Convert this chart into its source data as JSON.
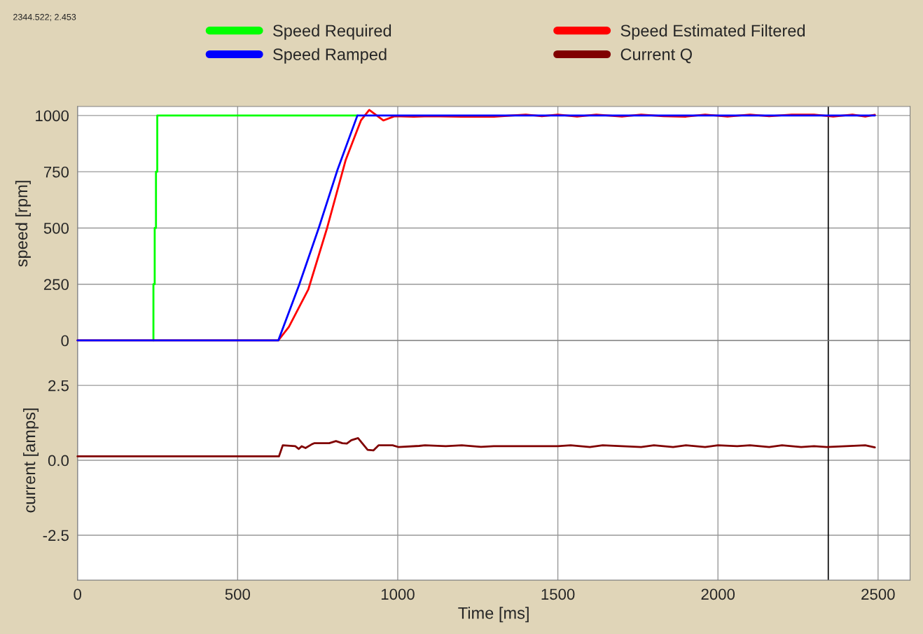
{
  "chart_data": [
    {
      "type": "line",
      "ylabel": "speed [rpm]",
      "xlim": [
        0,
        2600
      ],
      "ylim": [
        0,
        1040
      ],
      "xticks": [
        0,
        500,
        1000,
        1500,
        2000,
        2500
      ],
      "yticks": [
        0,
        250,
        500,
        750,
        1000
      ],
      "tick_labels": "y",
      "grid": true,
      "legend": "top",
      "annotations": [
        "2344.522; 2.453"
      ],
      "ref_lines": [
        {
          "axis": "x",
          "value": 2344.522,
          "color": "#000000"
        }
      ],
      "series": [
        {
          "name": "Speed Required",
          "color": "#00ff00",
          "x": [
            237,
            237,
            241,
            241,
            245,
            245,
            249,
            249,
            874
          ],
          "values": [
            0,
            250,
            250,
            500,
            500,
            750,
            750,
            1000,
            1000
          ]
        },
        {
          "name": "Speed Estimated Filtered",
          "color": "#ff0000",
          "x": [
            0,
            627,
            660,
            721,
            780,
            837,
            885,
            911,
            955,
            990,
            1050,
            1100,
            1200,
            1300,
            1400,
            1450,
            1500,
            1560,
            1620,
            1700,
            1760,
            1830,
            1900,
            1960,
            2030,
            2100,
            2160,
            2230,
            2300,
            2360,
            2420,
            2460,
            2490
          ],
          "values": [
            0,
            0,
            60,
            228,
            503,
            800,
            978,
            1025,
            978,
            997,
            995,
            997,
            995,
            995,
            1004,
            997,
            1004,
            995,
            1004,
            995,
            1004,
            997,
            995,
            1004,
            995,
            1004,
            997,
            1004,
            1004,
            995,
            1004,
            995,
            1003
          ]
        },
        {
          "name": "Speed Ramped",
          "color": "#0000ff",
          "x": [
            0,
            627,
            692,
            754,
            812,
            874,
            2490
          ],
          "values": [
            0,
            0,
            247,
            503,
            759,
            1000,
            1000
          ]
        }
      ]
    },
    {
      "type": "line",
      "ylabel": "current [amps]",
      "xlabel": "Time [ms]",
      "xlim": [
        0,
        2600
      ],
      "ylim": [
        -4,
        4
      ],
      "xticks": [
        0,
        500,
        1000,
        1500,
        2000,
        2500
      ],
      "yticks": [
        {
          "value": -2.5,
          "label": "-2.5"
        },
        {
          "value": 0,
          "label": "0.0"
        },
        2.5
      ],
      "grid": true,
      "legend": "top",
      "ref_lines": [
        {
          "axis": "x",
          "value": 2344.522,
          "color": "#000000"
        }
      ],
      "series": [
        {
          "name": "Current Q",
          "color": "#800000",
          "x": [
            0,
            629,
            641,
            680,
            691,
            700,
            712,
            731,
            739,
            786,
            807,
            827,
            841,
            855,
            876,
            906,
            924,
            940,
            984,
            1003,
            1067,
            1085,
            1150,
            1200,
            1260,
            1300,
            1400,
            1500,
            1540,
            1600,
            1640,
            1700,
            1760,
            1800,
            1860,
            1900,
            1960,
            2000,
            2060,
            2100,
            2160,
            2200,
            2260,
            2300,
            2340,
            2400,
            2460,
            2490
          ],
          "values": [
            0.13,
            0.13,
            0.5,
            0.47,
            0.38,
            0.47,
            0.41,
            0.53,
            0.57,
            0.57,
            0.64,
            0.57,
            0.56,
            0.67,
            0.74,
            0.35,
            0.33,
            0.5,
            0.5,
            0.44,
            0.48,
            0.5,
            0.47,
            0.5,
            0.45,
            0.47,
            0.47,
            0.47,
            0.5,
            0.44,
            0.5,
            0.47,
            0.44,
            0.5,
            0.44,
            0.5,
            0.44,
            0.5,
            0.47,
            0.5,
            0.44,
            0.5,
            0.44,
            0.47,
            0.44,
            0.47,
            0.5,
            0.43
          ]
        }
      ]
    }
  ]
}
